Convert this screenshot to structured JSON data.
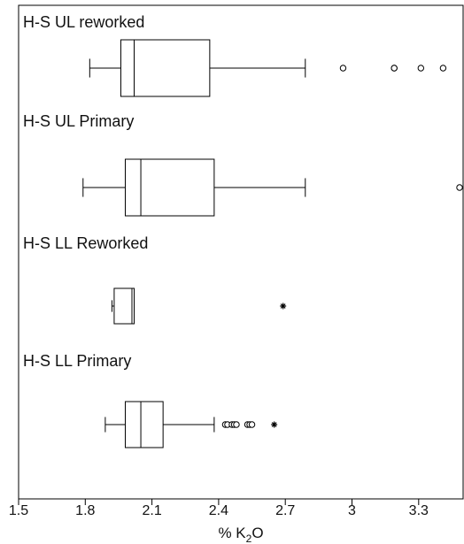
{
  "chart_data": {
    "type": "boxplot",
    "orientation": "horizontal",
    "xlabel_prefix": "% K",
    "xlabel_sub": "2",
    "xlabel_suffix": "O",
    "xlim": [
      1.5,
      3.5
    ],
    "xticks": [
      1.5,
      1.8,
      2.1,
      2.4,
      2.7,
      3.0,
      3.3
    ],
    "xtick_labels": [
      "1.5",
      "1.8",
      "2.1",
      "2.4",
      "2.7",
      "3",
      "3.3"
    ],
    "grid": false,
    "panels": [
      {
        "label": "H-S UL reworked",
        "whisker_low": 1.82,
        "q1": 1.96,
        "median": 2.02,
        "q3": 2.36,
        "whisker_high": 2.79,
        "outliers": [
          2.96,
          3.19,
          3.19,
          3.31,
          3.41
        ],
        "extremes": []
      },
      {
        "label": "H-S UL Primary",
        "whisker_low": 1.79,
        "q1": 1.98,
        "median": 2.05,
        "q3": 2.38,
        "whisker_high": 2.79,
        "outliers": [
          3.5
        ],
        "extremes": []
      },
      {
        "label": "H-S LL Reworked",
        "whisker_low": 1.92,
        "q1": 1.93,
        "median": 2.01,
        "q3": 2.02,
        "whisker_high": 2.02,
        "outliers": [],
        "extremes": [
          2.69
        ]
      },
      {
        "label": "H-S LL Primary",
        "whisker_low": 1.89,
        "q1": 1.98,
        "median": 2.05,
        "q3": 2.15,
        "whisker_high": 2.38,
        "outliers": [
          2.43,
          2.44,
          2.46,
          2.47,
          2.48,
          2.53,
          2.54,
          2.55
        ],
        "extremes": [
          2.65
        ]
      }
    ]
  }
}
